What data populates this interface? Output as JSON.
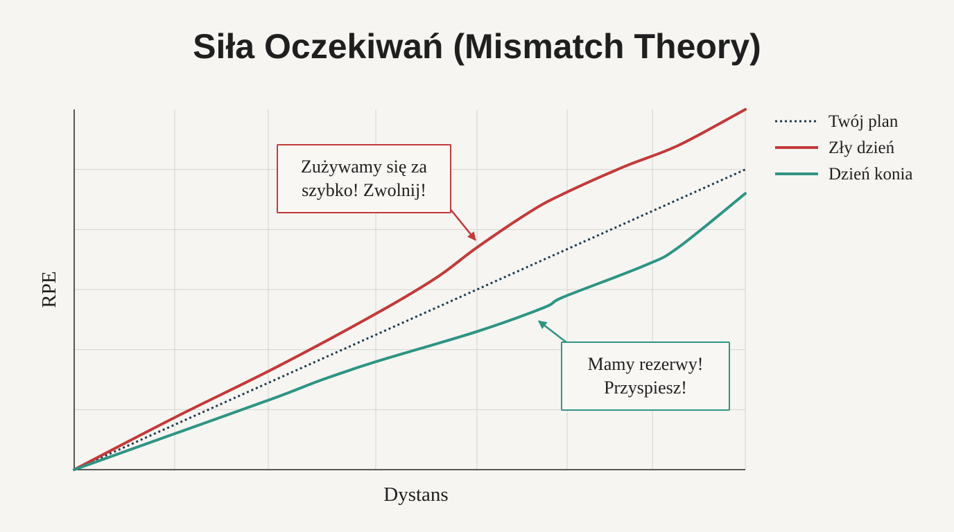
{
  "chart_data": {
    "type": "line",
    "title": "Siła Oczekiwań (Mismatch Theory)",
    "xlabel": "Dystans",
    "ylabel": "RPE",
    "xlim": [
      0,
      10
    ],
    "ylim": [
      0,
      6
    ],
    "grid": true,
    "legend_position": "top-right",
    "series": [
      {
        "name": "Twój plan",
        "style": "dotted",
        "color": "#1f3a4d",
        "x": [
          0,
          10
        ],
        "y": [
          0,
          5.0
        ]
      },
      {
        "name": "Zły dzień",
        "style": "solid",
        "color": "#c23a3a",
        "x": [
          0,
          1.5,
          3,
          4.5,
          5.4,
          6,
          6.8,
          7.3,
          8.2,
          9,
          10
        ],
        "y": [
          0,
          0.87,
          1.7,
          2.6,
          3.2,
          3.7,
          4.3,
          4.6,
          5.05,
          5.4,
          6.0
        ]
      },
      {
        "name": "Dzień konia",
        "style": "solid",
        "color": "#2e9484",
        "x": [
          0,
          1.5,
          3,
          3.7,
          4.5,
          6,
          7,
          7.3,
          8.5,
          9,
          10
        ],
        "y": [
          0,
          0.6,
          1.2,
          1.5,
          1.8,
          2.3,
          2.7,
          2.88,
          3.4,
          3.7,
          4.6
        ]
      }
    ],
    "annotations": [
      {
        "id": "bad",
        "text": "Zużywamy się za\nszybko! Zwolnij!",
        "color": "#c23a3a",
        "target": [
          6.0,
          3.8
        ]
      },
      {
        "id": "good",
        "text": "Mamy rezerwy!\nPrzyspiesz!",
        "color": "#2e9484",
        "target": [
          6.9,
          2.5
        ]
      }
    ]
  }
}
